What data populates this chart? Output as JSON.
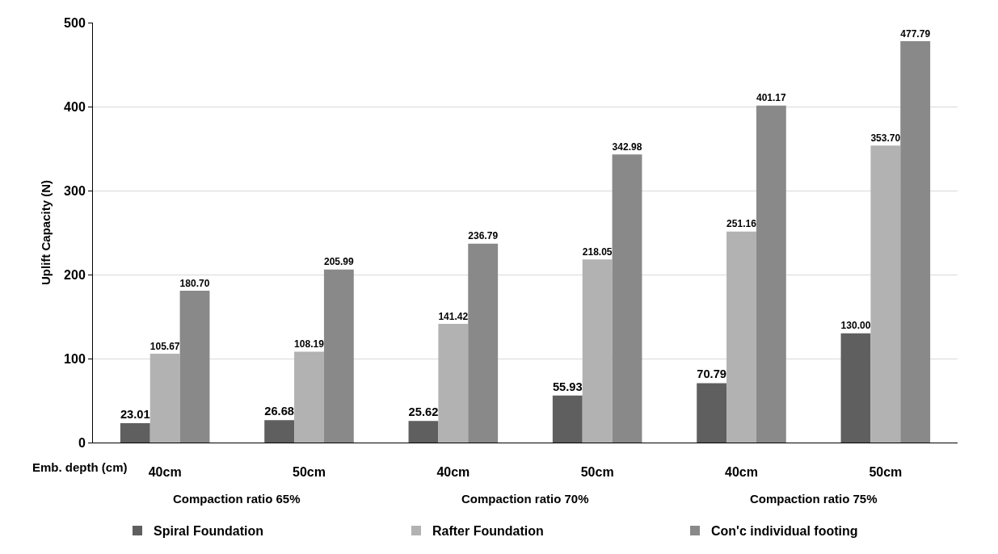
{
  "chart_data": {
    "type": "bar",
    "ylabel": "Uplift Capacity (N)",
    "xlabel": "Emb. depth (cm)",
    "categories": [
      "40cm",
      "50cm",
      "40cm",
      "50cm",
      "40cm",
      "50cm"
    ],
    "annotations": [
      "Compaction ratio 65%",
      "Compaction ratio 70%",
      "Compaction ratio 75%"
    ],
    "series": [
      {
        "name": "Spiral Foundation",
        "color": "#5f5f5f",
        "values": [
          23.01,
          26.68,
          25.62,
          55.93,
          70.79,
          130.0
        ],
        "value_labels": [
          "23.01",
          "26.68",
          "25.62",
          "55.93",
          "70.79",
          "130.00"
        ]
      },
      {
        "name": "Rafter Foundation",
        "color": "#b2b2b2",
        "values": [
          105.67,
          108.19,
          141.42,
          218.05,
          251.16,
          353.7
        ],
        "value_labels": [
          "105.67",
          "108.19",
          "141.42",
          "218.05",
          "251.16",
          "353.70"
        ]
      },
      {
        "name": "Con'c individual footing",
        "color": "#898989",
        "values": [
          180.7,
          205.99,
          236.79,
          342.98,
          401.17,
          477.79
        ],
        "value_labels": [
          "180.70",
          "205.99",
          "236.79",
          "342.98",
          "401.17",
          "477.79"
        ]
      }
    ],
    "ylim": [
      0,
      500
    ],
    "yticks": [
      0,
      100,
      200,
      300,
      400,
      500
    ],
    "grid": "y",
    "legend": "bottom"
  }
}
